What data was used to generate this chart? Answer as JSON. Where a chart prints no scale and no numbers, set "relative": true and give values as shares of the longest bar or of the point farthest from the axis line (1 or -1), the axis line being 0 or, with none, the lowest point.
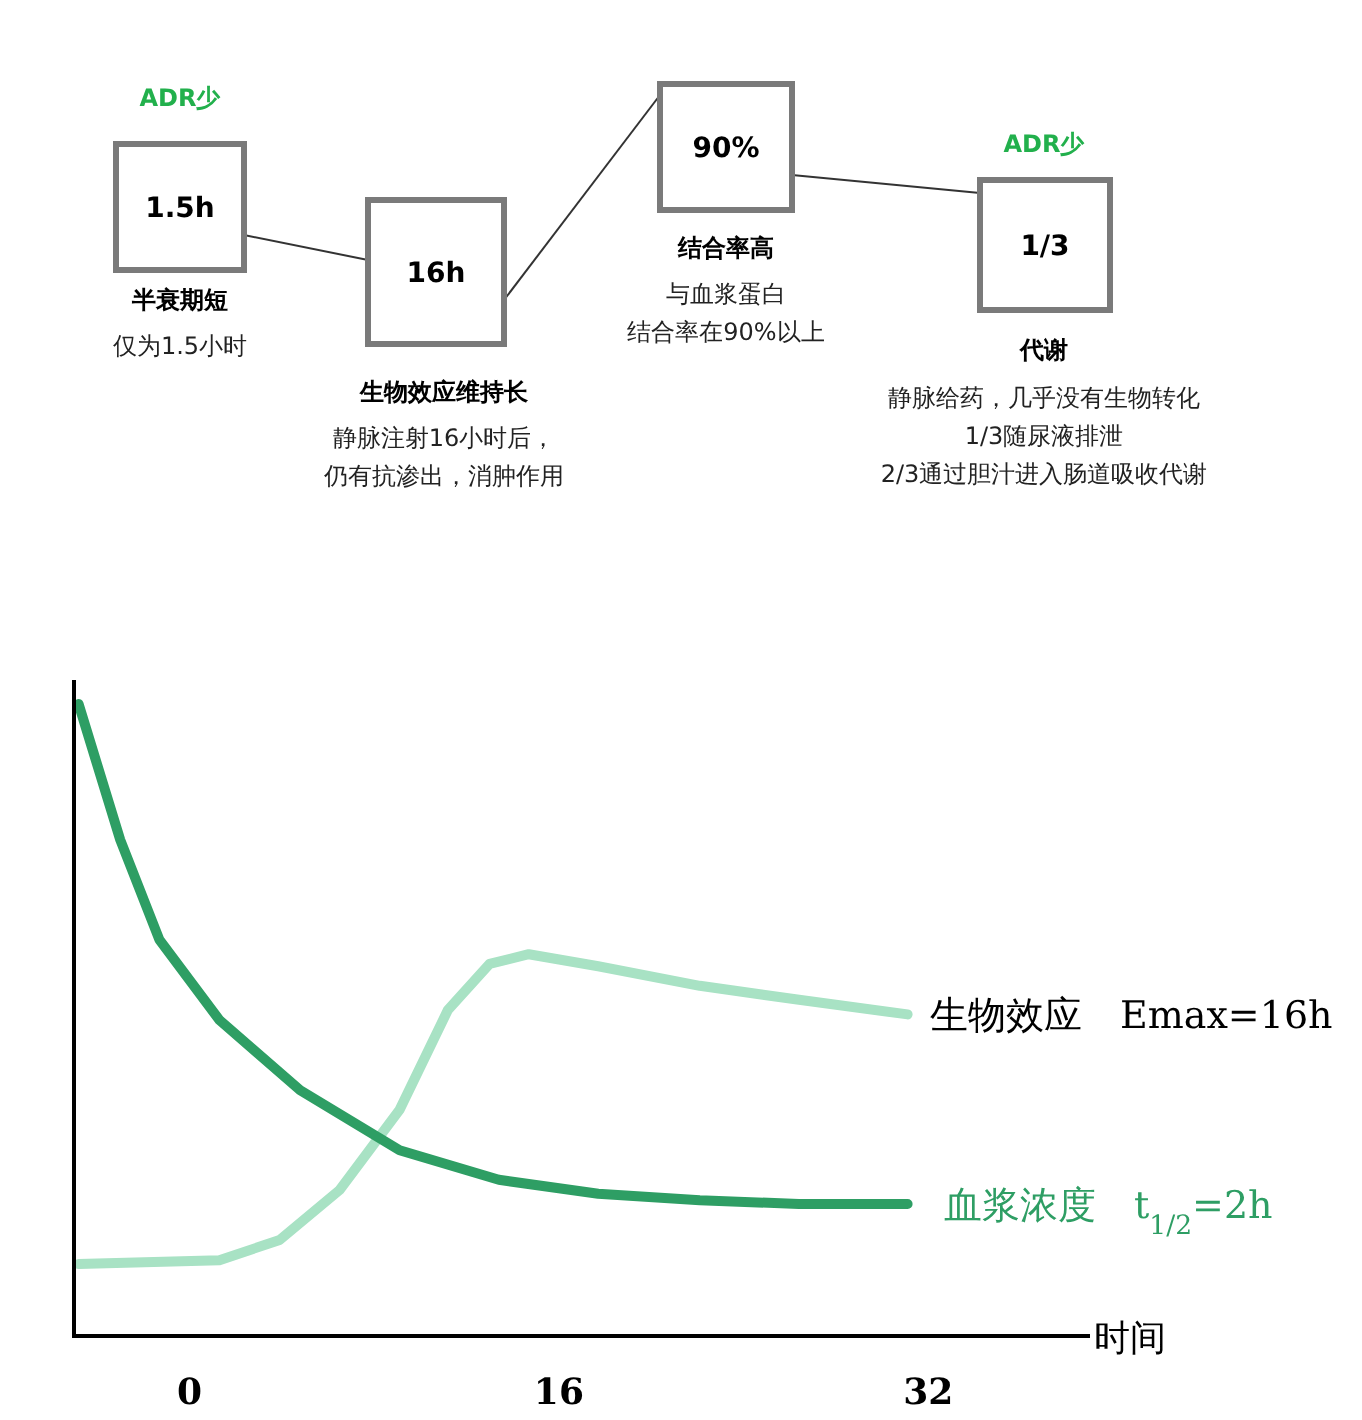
{
  "chart_data": [
    {
      "type": "other",
      "categories": [
        "1.5h",
        "16h",
        "90%",
        "1/3"
      ],
      "annotations": [
        "ADR少",
        "半衰期短",
        "仅为1.5小时",
        "生物效应维持长",
        "静脉注射16小时后，",
        "仍有抗渗出，消肿作用",
        "结合率高",
        "与血浆蛋白",
        "结合率在90%以上",
        "ADR少",
        "代谢",
        "静脉给药，几乎没有生物转化",
        "1/3随尿液排泄",
        "2/3通过胆汁进入肠道吸收代谢"
      ]
    },
    {
      "type": "line",
      "relative": true,
      "xlabel": "时间",
      "xlim": [
        -5,
        39
      ],
      "xticks": [
        0,
        16,
        32
      ],
      "tick_labels": "x",
      "grid": false,
      "marker": "none",
      "line_style": "solid",
      "series": [
        {
          "name": "生物效应　Emax=16h",
          "color": "#a8e2c4",
          "x": [
            -4.8,
            1.3,
            3.9,
            6.5,
            9.1,
            11.2,
            13,
            14.7,
            17.7,
            22.1,
            26.4,
            31.1
          ],
          "values": [
            0.114,
            0.12,
            0.152,
            0.231,
            0.358,
            0.516,
            0.589,
            0.604,
            0.585,
            0.554,
            0.532,
            0.509
          ]
        },
        {
          "name": "血浆浓度　t$_{1/2}$=2h",
          "color": "#2e9e64",
          "x": [
            -4.8,
            -3,
            -1.3,
            1.3,
            4.8,
            9.1,
            13.4,
            17.7,
            22.1,
            26.4,
            31.1
          ],
          "values": [
            1,
            0.785,
            0.627,
            0.5,
            0.389,
            0.294,
            0.247,
            0.225,
            0.215,
            0.209,
            0.209
          ]
        }
      ]
    }
  ]
}
